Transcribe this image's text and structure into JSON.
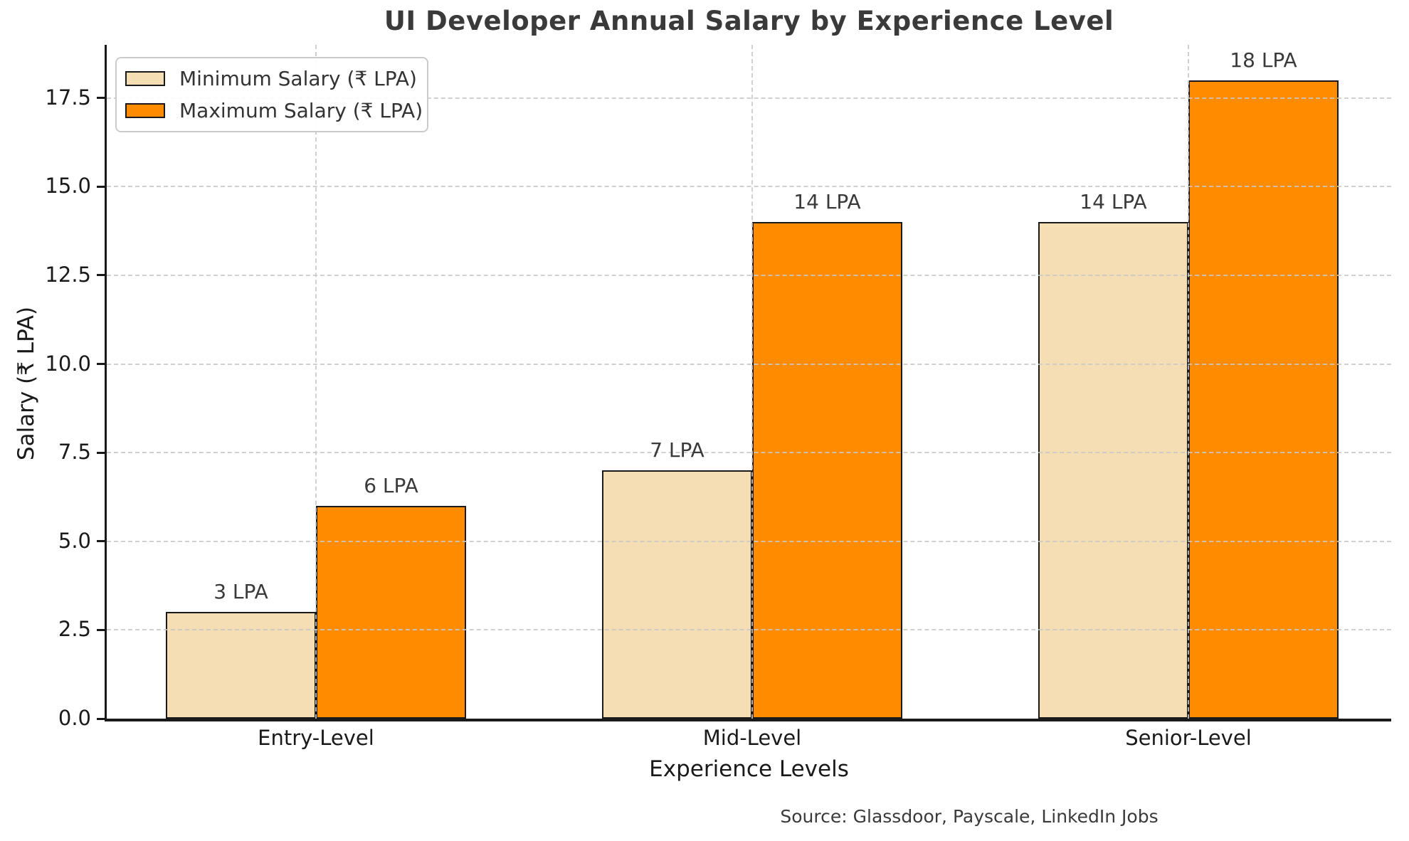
{
  "title": "UI Developer Annual Salary by Experience Level",
  "source_note": "Source: Glassdoor, Payscale, LinkedIn Jobs",
  "colors": {
    "min_series": "#F5DEB3",
    "max_series": "#FF8C00",
    "bar_edge": "#1a1a1a",
    "grid": "#c8c8c8",
    "title_text": "#3a3a3a",
    "tick_text": "#1a1a1a",
    "background": "#ffffff"
  },
  "chart_data": {
    "type": "bar",
    "title": "UI Developer Annual Salary by Experience Level",
    "categories": [
      "Entry-Level",
      "Mid-Level",
      "Senior-Level"
    ],
    "series": [
      {
        "name": "Minimum Salary (₹ LPA)",
        "values": [
          3,
          7,
          14
        ],
        "labels": [
          "3 LPA",
          "7 LPA",
          "14 LPA"
        ],
        "color": "#F5DEB3"
      },
      {
        "name": "Maximum Salary (₹ LPA)",
        "values": [
          6,
          14,
          18
        ],
        "labels": [
          "6 LPA",
          "14 LPA",
          "18 LPA"
        ],
        "color": "#FF8C00"
      }
    ],
    "xlabel": "Experience Levels",
    "ylabel": "Salary (₹ LPA)",
    "yticks": [
      0.0,
      2.5,
      5.0,
      7.5,
      10.0,
      12.5,
      15.0,
      17.5
    ],
    "ytick_labels": [
      "0.0",
      "2.5",
      "5.0",
      "7.5",
      "10.0",
      "12.5",
      "15.0",
      "17.5"
    ],
    "ylim": [
      0,
      19.0
    ],
    "grid": true,
    "grid_style": "dashed",
    "legend_position": "upper left",
    "annotation_note": "Source: Glassdoor, Payscale, LinkedIn Jobs"
  }
}
